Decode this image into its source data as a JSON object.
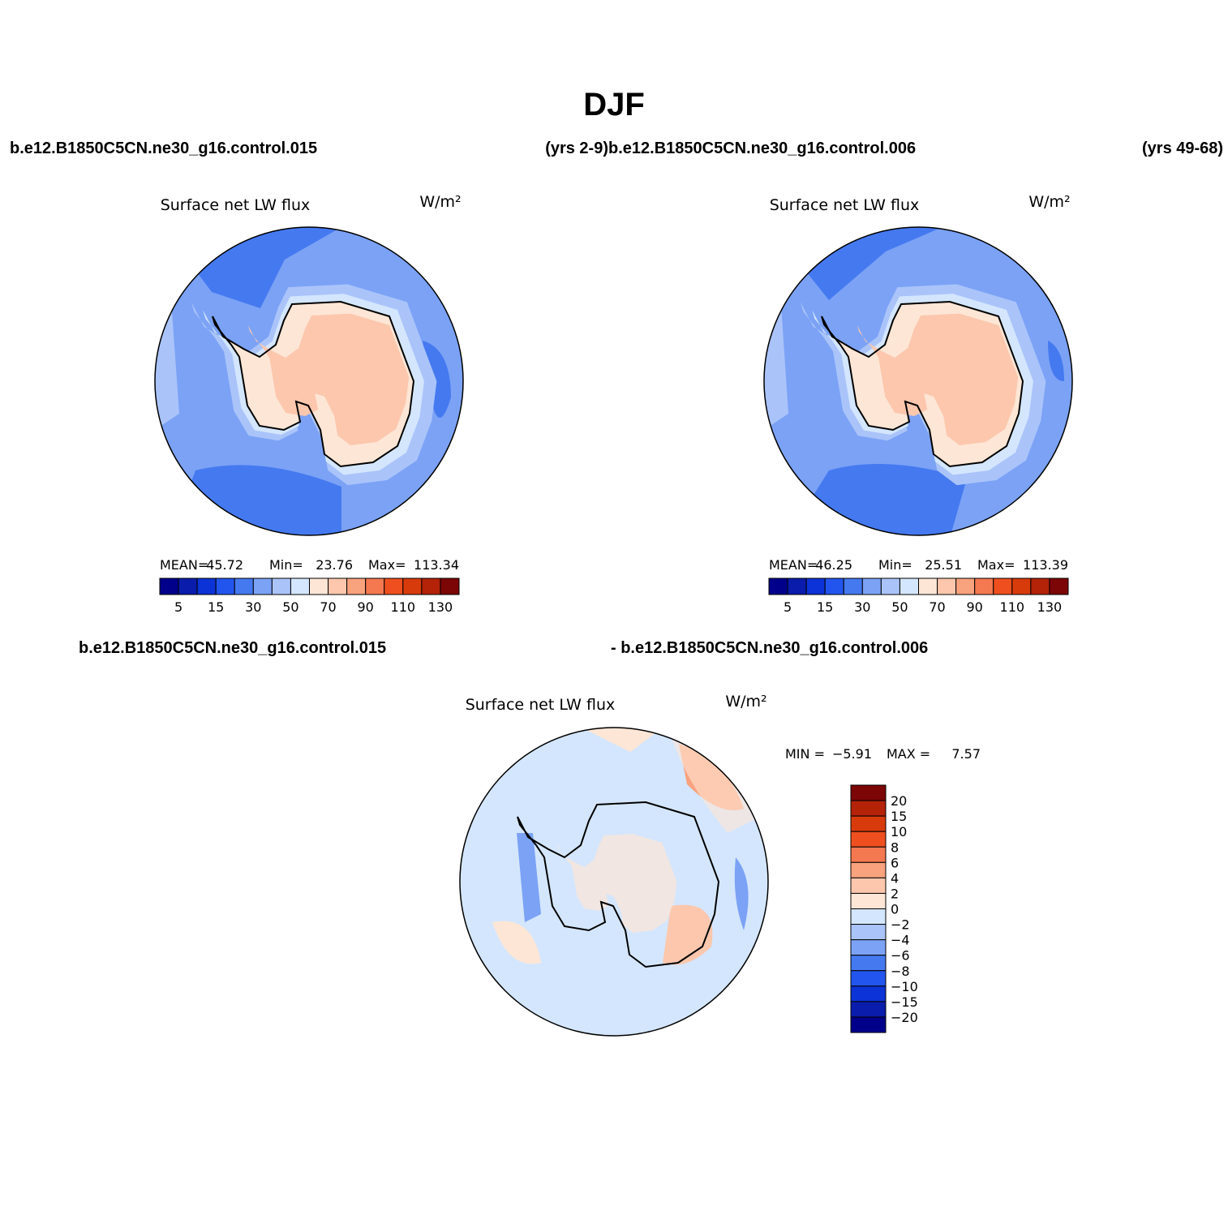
{
  "title": "DJF",
  "header": {
    "case_a": "b.e12.B1850C5CN.ne30_g16.control.015",
    "years_a": "(yrs 2-9)",
    "case_b": "b.e12.B1850C5CN.ne30_g16.control.006",
    "years_b": "(yrs 49-68)"
  },
  "panels": [
    {
      "title": "Surface net LW flux",
      "units": "W/m²",
      "stats": [
        {
          "label": "MEAN=",
          "value": 45.72
        },
        {
          "label": "Min=",
          "value": 23.76
        },
        {
          "label": "Max=",
          "value": 113.34
        }
      ],
      "colorbar": {
        "labels": [
          5,
          15,
          30,
          50,
          70,
          90,
          110,
          130
        ]
      }
    },
    {
      "title": "Surface net LW flux",
      "units": "W/m²",
      "stats": [
        {
          "label": "MEAN=",
          "value": 46.25
        },
        {
          "label": "Min=",
          "value": 25.51
        },
        {
          "label": "Max=",
          "value": 113.39
        }
      ],
      "colorbar": {
        "labels": [
          5,
          15,
          30,
          50,
          70,
          90,
          110,
          130
        ]
      }
    }
  ],
  "colors": [
    "#00008b",
    "#0a1cab",
    "#0c33d6",
    "#2255ee",
    "#4579f0",
    "#7ba2f5",
    "#aac4fa",
    "#d4e6fd",
    "#fde6d6",
    "#fcc7ad",
    "#f9a27e",
    "#f47850",
    "#ef4f1f",
    "#d83b0b",
    "#b42208",
    "#7c0506"
  ],
  "difference": {
    "case_a": "b.e12.B1850C5CN.ne30_g16.control.015",
    "case_b": "- b.e12.B1850C5CN.ne30_g16.control.006",
    "title": "Surface net LW flux",
    "units": "W/m²",
    "stats": [
      {
        "label": "MIN =",
        "value": "−5.91"
      },
      {
        "label": "MAX =",
        "value": "7.57"
      }
    ],
    "colorbar": {
      "labels": [
        "20",
        "15",
        "10",
        "8",
        "6",
        "4",
        "2",
        "0",
        "−2",
        "−4",
        "−6",
        "−8",
        "−10",
        "−15",
        "−20"
      ]
    }
  }
}
